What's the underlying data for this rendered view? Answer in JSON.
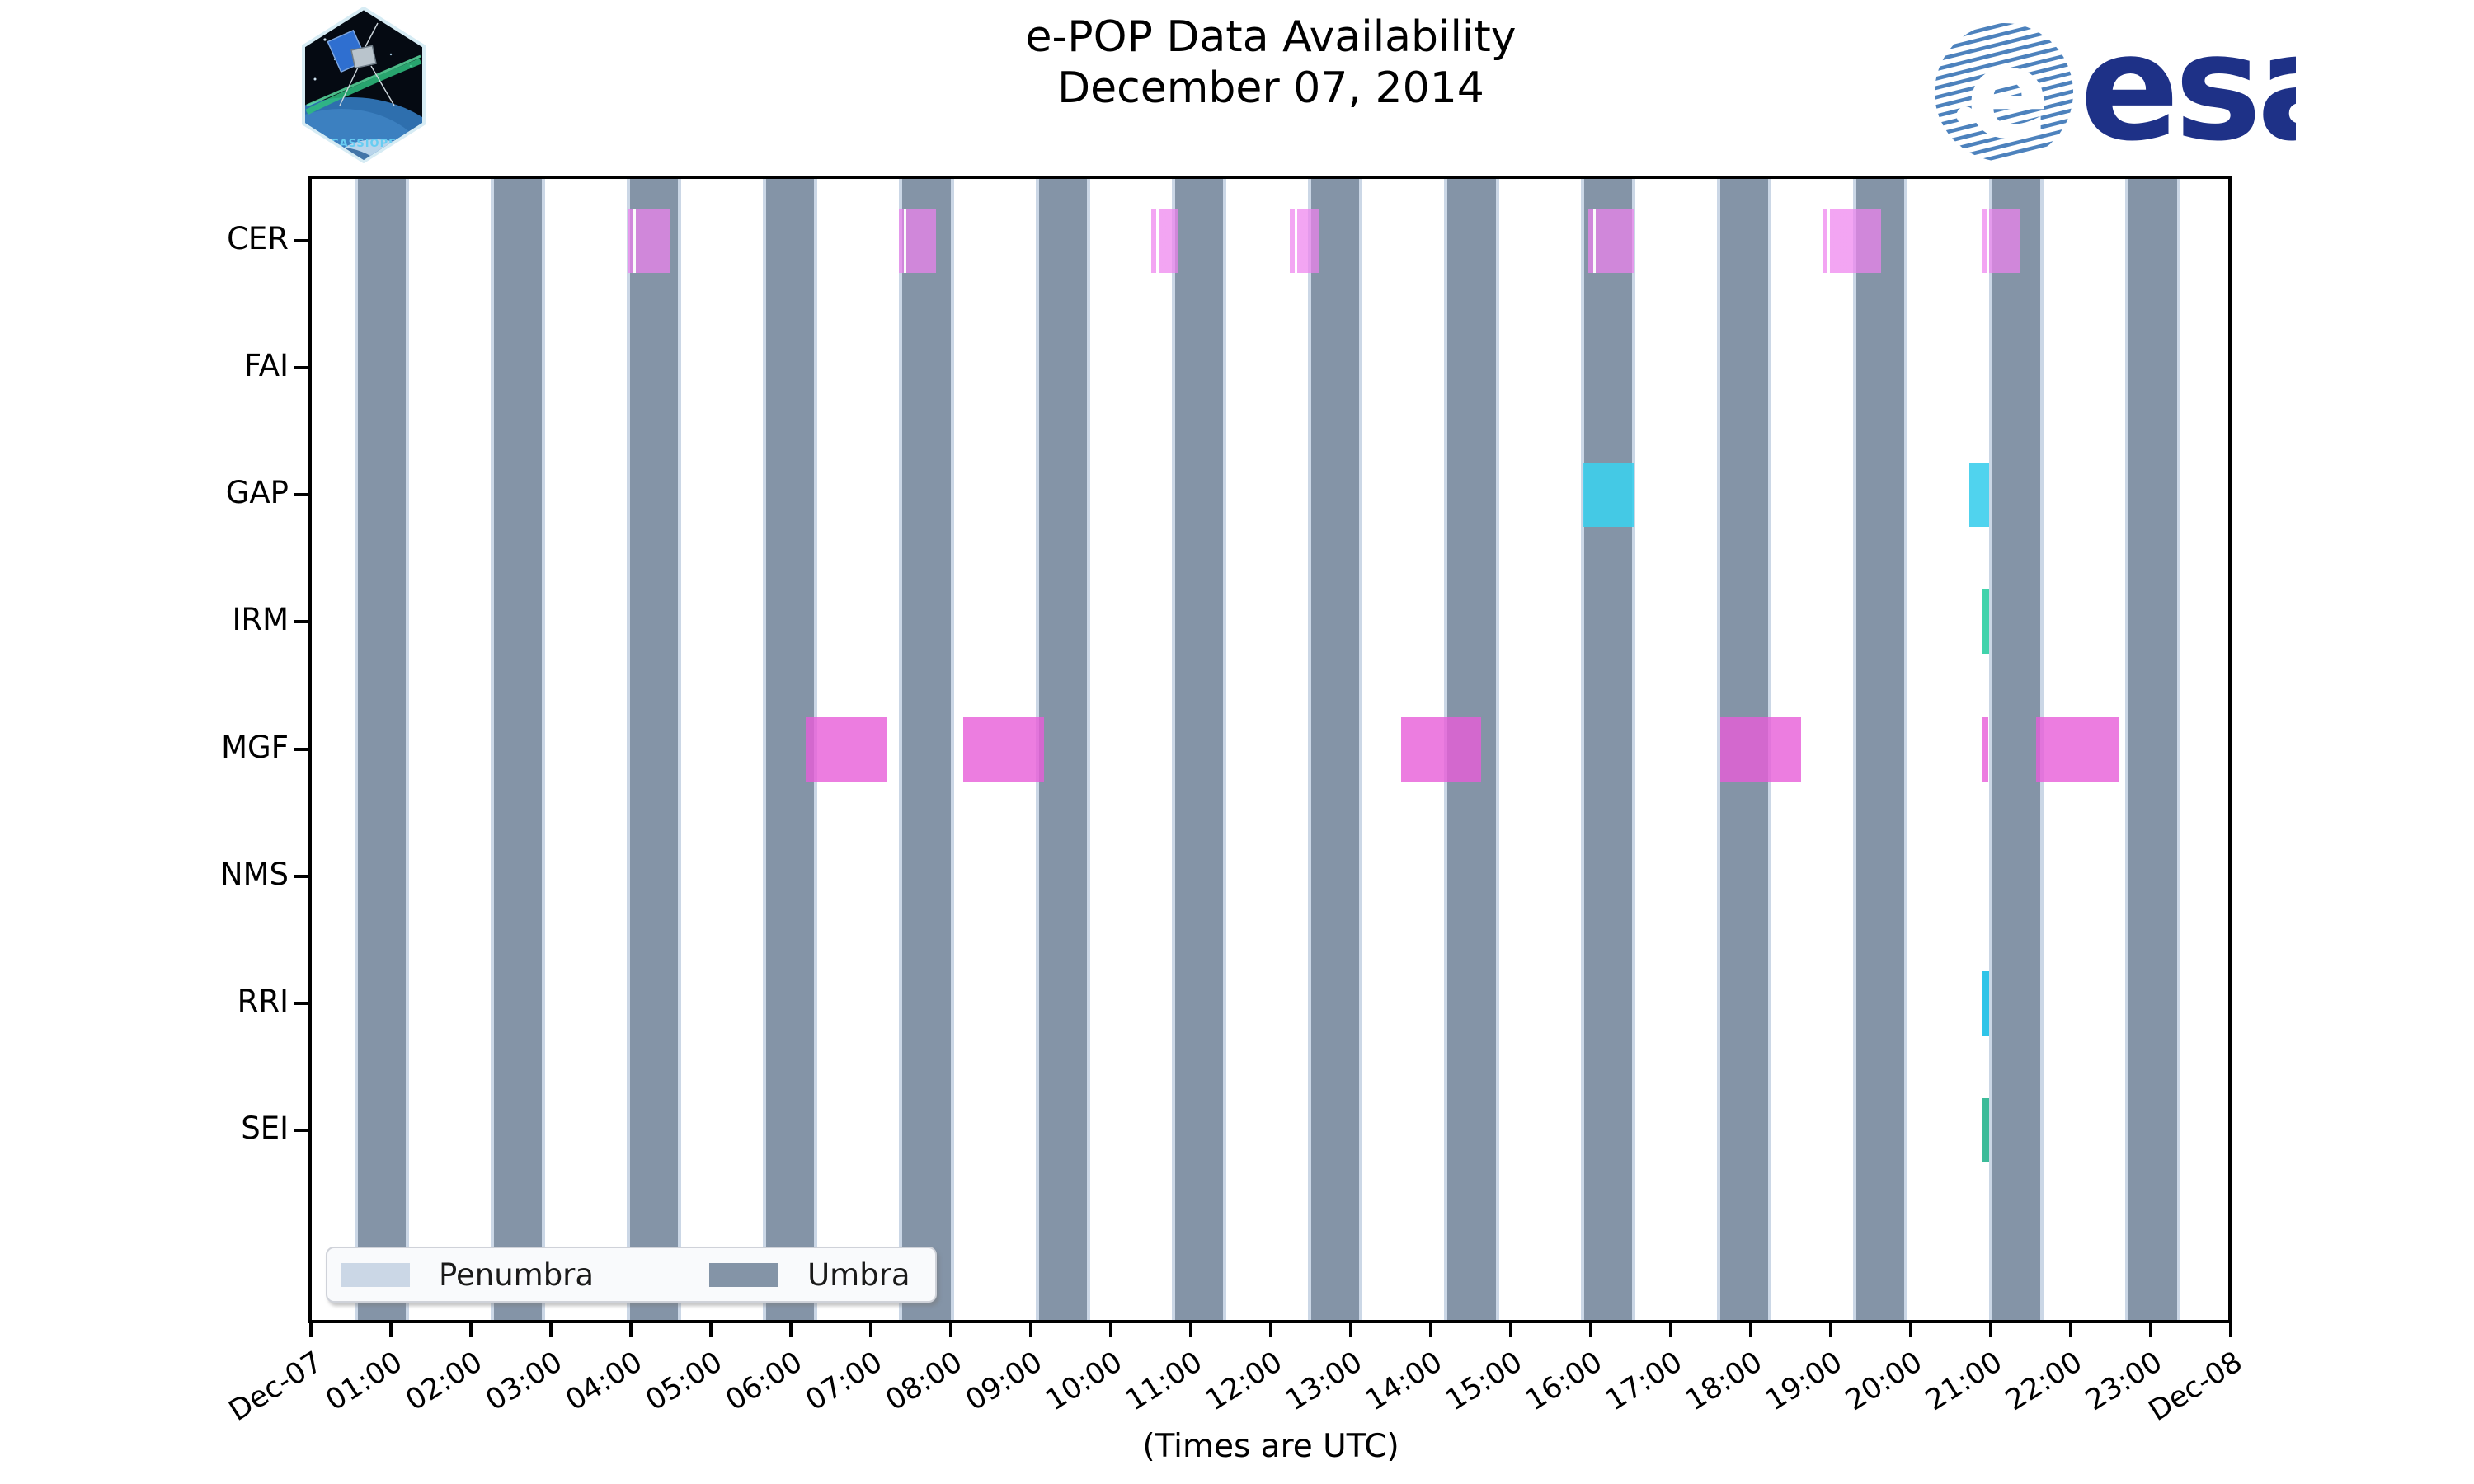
{
  "header": {
    "title_line1": "e-POP Data Availability",
    "title_line2": "December 07, 2014",
    "cassiope_label": "CASSIOPE",
    "esa_label": "esa"
  },
  "footer": {
    "xlabel": "(Times are UTC)"
  },
  "legend": {
    "items": [
      {
        "label": "Penumbra",
        "color": "#cbd7e6"
      },
      {
        "label": "Umbra",
        "color": "#8494a7"
      }
    ]
  },
  "chart_data": {
    "type": "bar",
    "variant": "gantt-availability-timeline",
    "title": "e-POP Data Availability December 07, 2014",
    "xlabel": "(Times are UTC)",
    "x_axis": {
      "start": "Dec-07 00:00",
      "end": "Dec-08 00:00",
      "tick_labels": [
        "Dec-07",
        "01:00",
        "02:00",
        "03:00",
        "04:00",
        "05:00",
        "06:00",
        "07:00",
        "08:00",
        "09:00",
        "10:00",
        "11:00",
        "12:00",
        "13:00",
        "14:00",
        "15:00",
        "16:00",
        "17:00",
        "18:00",
        "19:00",
        "20:00",
        "21:00",
        "22:00",
        "23:00",
        "Dec-08"
      ]
    },
    "instruments": [
      "CER",
      "FAI",
      "GAP",
      "IRM",
      "MGF",
      "NMS",
      "RRI",
      "SEI"
    ],
    "colors": {
      "CER": "rgba(238,130,238,0.72)",
      "FAI": null,
      "GAP": "rgba(61,206,236,0.90)",
      "IRM": "rgba(55,209,167,0.95)",
      "MGF": "rgba(231,92,216,0.80)",
      "NMS": null,
      "RRI": "rgba(36,193,231,0.95)",
      "SEI": "rgba(50,183,148,0.95)"
    },
    "availability_utc": {
      "CER": [
        [
          "03:58",
          "04:30"
        ],
        [
          "07:21",
          "07:49"
        ],
        [
          "10:30",
          "10:51"
        ],
        [
          "12:14",
          "12:36"
        ],
        [
          "15:58",
          "16:33"
        ],
        [
          "18:54",
          "19:38"
        ],
        [
          "20:53",
          "21:22"
        ]
      ],
      "FAI": [],
      "GAP": [
        [
          "15:54",
          "16:33"
        ],
        [
          "20:44",
          "20:59"
        ]
      ],
      "IRM": [
        [
          "20:54",
          "20:59"
        ]
      ],
      "MGF": [
        [
          "06:11",
          "07:12"
        ],
        [
          "08:09",
          "09:10"
        ],
        [
          "13:38",
          "14:38"
        ],
        [
          "17:37",
          "18:38"
        ],
        [
          "20:53",
          "20:58"
        ],
        [
          "21:34",
          "22:36"
        ]
      ],
      "NMS": [],
      "RRI": [
        [
          "20:54",
          "20:59"
        ]
      ],
      "SEI": [
        [
          "20:54",
          "20:59"
        ]
      ]
    },
    "eclipse": {
      "umbra_first_start_min": 35,
      "orbit_period_min": 102.2,
      "umbra_duration_min": 36,
      "umbra_count": 14,
      "umbra_color": "#8494a7",
      "penumbra_color": "#cbd7e6"
    },
    "legend_entries": [
      "Penumbra",
      "Umbra"
    ]
  }
}
